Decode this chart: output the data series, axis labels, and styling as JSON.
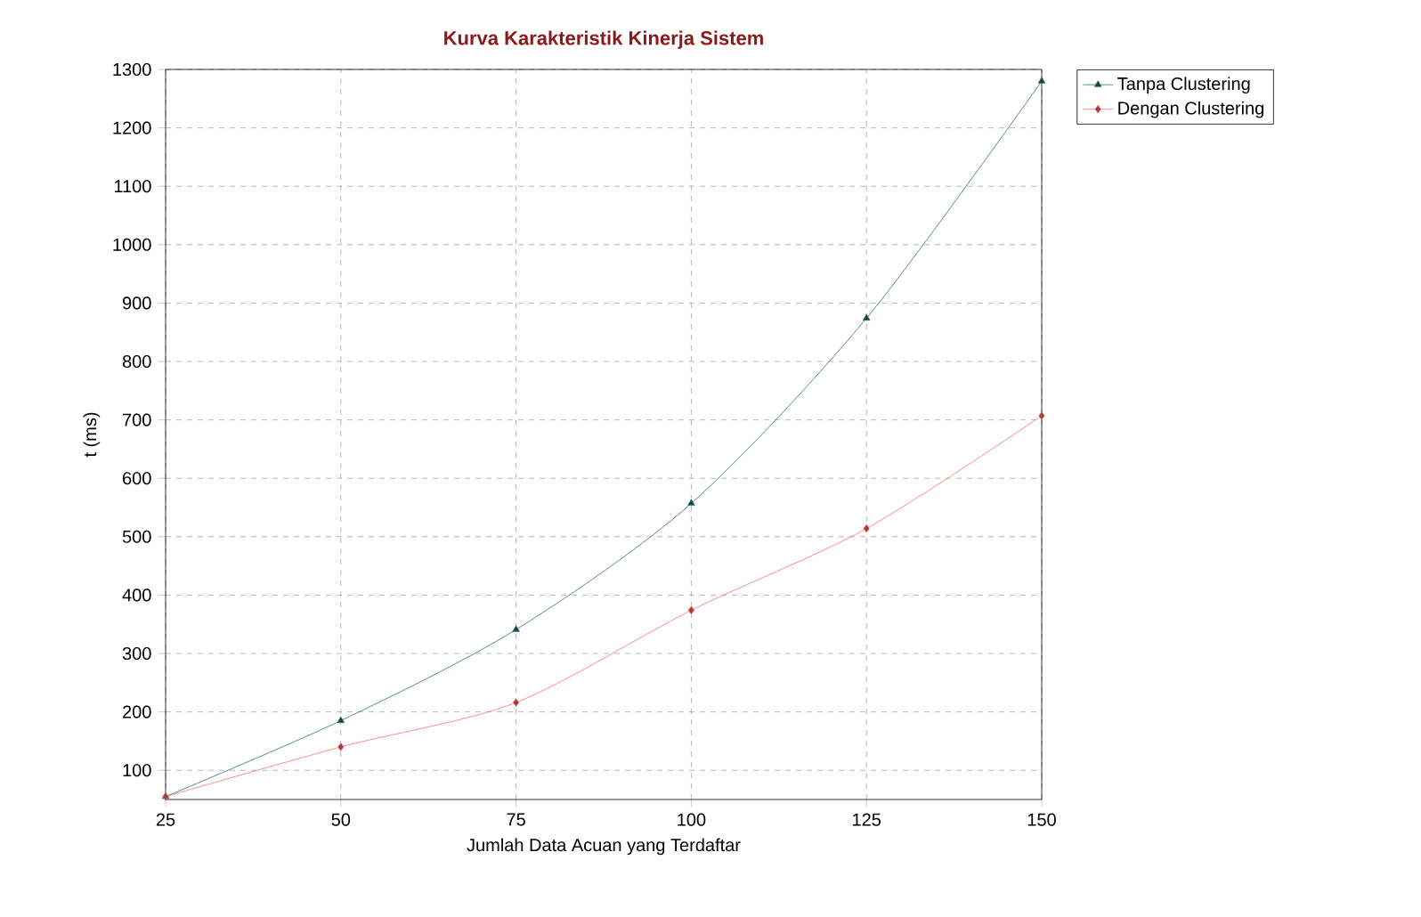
{
  "chart_data": {
    "type": "line",
    "title": "Kurva Karakteristik Kinerja Sistem",
    "xlabel": "Jumlah Data Acuan yang Terdaftar",
    "ylabel": "t (ms)",
    "x": [
      25,
      50,
      75,
      100,
      125,
      150
    ],
    "series": [
      {
        "name": "Tanpa Clustering",
        "color": "#2f6f6f",
        "marker": "triangle",
        "values": [
          55,
          185,
          341,
          557,
          874,
          1280
        ]
      },
      {
        "name": "Dengan Clustering",
        "color": "#ff6f6f",
        "marker": "diamond",
        "values": [
          55,
          140,
          216,
          374,
          514,
          707
        ]
      }
    ],
    "xlim": [
      25,
      150
    ],
    "ylim": [
      50,
      1300
    ],
    "xticks": [
      25,
      50,
      75,
      100,
      125,
      150
    ],
    "yticks": [
      100,
      200,
      300,
      400,
      500,
      600,
      700,
      800,
      900,
      1000,
      1100,
      1200,
      1300
    ],
    "grid": true,
    "legend": "top right",
    "line_style": "solid"
  }
}
